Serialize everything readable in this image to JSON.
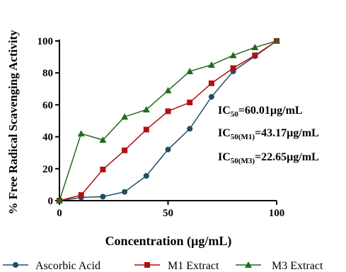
{
  "chart_data": {
    "type": "line",
    "xlabel": "Concentration (µg/mL)",
    "ylabel": "% Free Radical Scavenging Activity",
    "xlim": [
      0,
      100
    ],
    "ylim": [
      0,
      100
    ],
    "xticks": [
      0,
      50,
      100
    ],
    "yticks": [
      0,
      20,
      40,
      60,
      80,
      100
    ],
    "grid": false,
    "legend_position": "bottom",
    "series": [
      {
        "name": "Ascorbic Acid",
        "color": "#1f4e63",
        "marker": "circle",
        "x": [
          0,
          10,
          20,
          30,
          40,
          50,
          60,
          70,
          80,
          90,
          100
        ],
        "y": [
          0,
          2,
          2.5,
          5.5,
          15.5,
          32,
          45,
          65,
          81,
          90.5,
          100
        ]
      },
      {
        "name": "M1 Extract",
        "color": "#b01010",
        "marker": "square",
        "x": [
          0,
          10,
          20,
          30,
          40,
          50,
          60,
          70,
          80,
          90,
          100
        ],
        "y": [
          0,
          3.5,
          19.5,
          31.5,
          44.5,
          56,
          61.5,
          73.5,
          83,
          91,
          100
        ]
      },
      {
        "name": "M3 Extract",
        "color": "#1e6b1e",
        "marker": "triangle",
        "x": [
          0,
          10,
          20,
          30,
          40,
          50,
          60,
          70,
          80,
          90,
          100
        ],
        "y": [
          0,
          42,
          38,
          52.5,
          57,
          69,
          81,
          85,
          91,
          96,
          100
        ]
      }
    ],
    "annotations": [
      {
        "prefix": "IC",
        "sub": "50",
        "value": "=60.01µg/mL"
      },
      {
        "prefix": "IC",
        "sub": "50(M1)",
        "value": "=43.17µg/mL"
      },
      {
        "prefix": "IC",
        "sub": "50(M3)",
        "value": "=22.65µg/mL"
      }
    ]
  }
}
